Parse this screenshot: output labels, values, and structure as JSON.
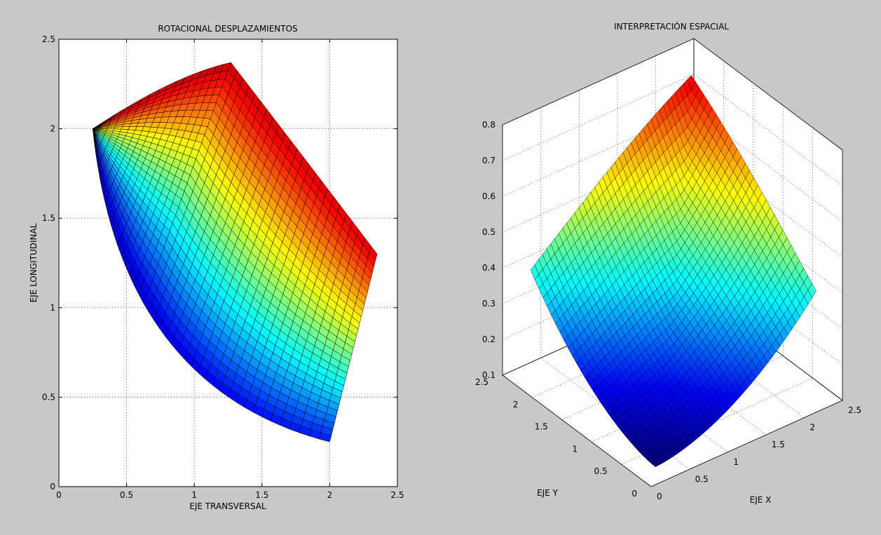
{
  "figure": {
    "background": "#c8c8c8",
    "colormap": "jet"
  },
  "chart_data": [
    {
      "type": "surface-2d",
      "title": "ROTACIONAL DESPLAZAMIENTOS",
      "xlabel": "EJE TRANSVERSAL",
      "ylabel": "EJE LONGITUDINAL",
      "xlim": [
        0,
        2.5
      ],
      "ylim": [
        0,
        2.5
      ],
      "xticks": [
        0,
        0.5,
        1,
        1.5,
        2,
        2.5
      ],
      "xtick_labels": [
        "0",
        "0.5",
        "1",
        "1.5",
        "2",
        "2.5"
      ],
      "yticks": [
        0,
        0.5,
        1,
        1.5,
        2,
        2.5
      ],
      "ytick_labels": [
        "0",
        "0.5",
        "1",
        "1.5",
        "2",
        "2.5"
      ],
      "grid": true,
      "grid_style": "dotted",
      "mesh": {
        "rows": 40,
        "cols": 30
      },
      "corners": {
        "bottom_left": [
          0.5,
          1.0
        ],
        "top_left": [
          0.25,
          2.0
        ],
        "bottom_right": [
          2.0,
          0.25
        ],
        "top_right": [
          2.35,
          1.3
        ]
      },
      "upper_right_edge_peak": [
        1.27,
        2.37
      ],
      "color_low": "#00008f",
      "color_high": "#800000"
    },
    {
      "type": "surface-3d",
      "title": "INTERPRETACIÓN ESPACIAL",
      "xlabel": "EJE X",
      "ylabel": "EJE Y",
      "xlim": [
        0,
        2.5
      ],
      "ylim": [
        0,
        2.5
      ],
      "zlim": [
        0.1,
        0.8
      ],
      "xtick_labels": [
        "0",
        "0.5",
        "1",
        "1.5",
        "2",
        "2.5"
      ],
      "ytick_labels": [
        "0",
        "0.5",
        "1",
        "1.5",
        "2",
        "2.5"
      ],
      "ztick_labels": [
        "0.1",
        "0.2",
        "0.3",
        "0.4",
        "0.5",
        "0.6",
        "0.7",
        "0.8"
      ],
      "zticks": [
        0.1,
        0.2,
        0.3,
        0.4,
        0.5,
        0.6,
        0.7,
        0.8
      ],
      "grid": true,
      "grid_style": "dotted",
      "mesh": {
        "rows": 40,
        "cols": 30
      },
      "z_min": 0.1,
      "z_max": 0.8,
      "surface": "saddle-shaped bowl: minimum at front, edges rising to peaks at back corners"
    }
  ]
}
